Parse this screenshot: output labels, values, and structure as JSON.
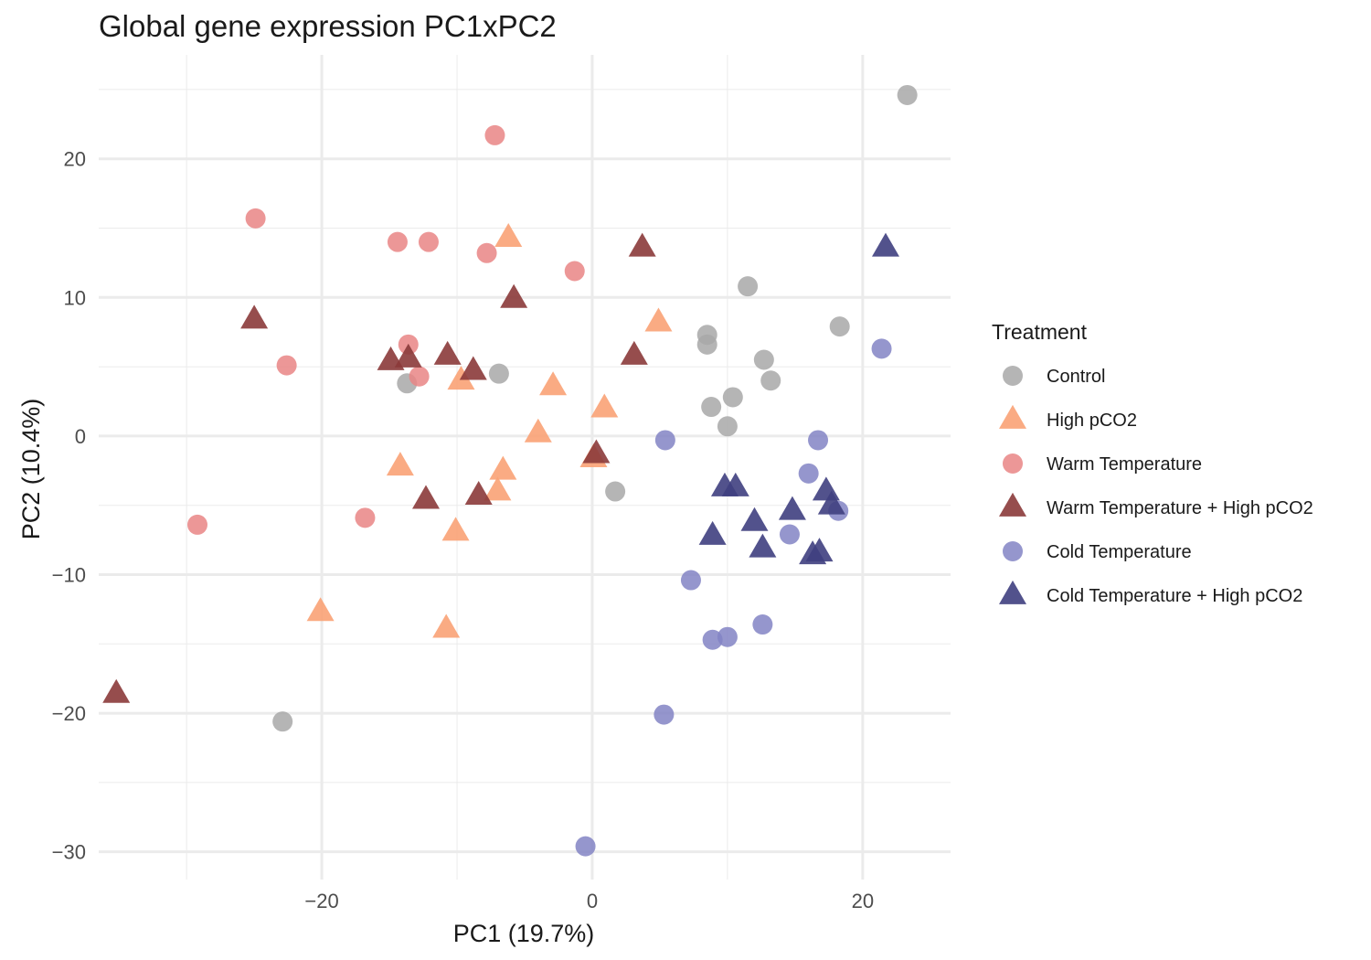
{
  "chart_data": {
    "type": "scatter",
    "title": "Global gene expression PC1xPC2",
    "xlabel": "PC1 (19.7%)",
    "ylabel": "PC2 (10.4%)",
    "xlim": [
      -36.5,
      26.5
    ],
    "ylim": [
      -32,
      27.5
    ],
    "x_ticks": [
      -20,
      0,
      20
    ],
    "x_tick_labels": [
      "−20",
      "0",
      "20"
    ],
    "y_ticks": [
      -30,
      -20,
      -10,
      0,
      10,
      20
    ],
    "y_tick_labels": [
      "−30",
      "−20",
      "−10",
      "0",
      "10",
      "20"
    ],
    "grid": true,
    "legend": {
      "title": "Treatment",
      "position": "right"
    },
    "series": [
      {
        "name": "Control",
        "shape": "circle",
        "color": "#A8A8A8",
        "points": [
          [
            23.3,
            24.6
          ],
          [
            11.5,
            10.8
          ],
          [
            18.3,
            7.9
          ],
          [
            8.5,
            7.3
          ],
          [
            8.5,
            6.6
          ],
          [
            12.7,
            5.5
          ],
          [
            13.2,
            4.0
          ],
          [
            -6.9,
            4.5
          ],
          [
            -13.7,
            3.8
          ],
          [
            10.4,
            2.8
          ],
          [
            8.8,
            2.1
          ],
          [
            10.0,
            0.7
          ],
          [
            1.7,
            -4.0
          ],
          [
            -22.9,
            -20.6
          ]
        ]
      },
      {
        "name": "High pCO2",
        "shape": "triangle",
        "color": "#F9A275",
        "points": [
          [
            -6.2,
            14.3
          ],
          [
            4.9,
            8.2
          ],
          [
            -9.7,
            4.0
          ],
          [
            -2.9,
            3.6
          ],
          [
            0.9,
            2.0
          ],
          [
            -4.0,
            0.2
          ],
          [
            0.1,
            -1.6
          ],
          [
            -14.2,
            -2.2
          ],
          [
            -6.6,
            -2.5
          ],
          [
            -7.0,
            -4.0
          ],
          [
            -10.1,
            -6.9
          ],
          [
            -20.1,
            -12.7
          ],
          [
            -10.8,
            -13.9
          ]
        ]
      },
      {
        "name": "Warm Temperature",
        "shape": "circle",
        "color": "#E98585",
        "points": [
          [
            -7.2,
            21.7
          ],
          [
            -24.9,
            15.7
          ],
          [
            -14.4,
            14.0
          ],
          [
            -12.1,
            14.0
          ],
          [
            -7.8,
            13.2
          ],
          [
            -1.3,
            11.9
          ],
          [
            -13.6,
            6.6
          ],
          [
            -22.6,
            5.1
          ],
          [
            -12.8,
            4.3
          ],
          [
            -16.8,
            -5.9
          ],
          [
            -29.2,
            -6.4
          ]
        ]
      },
      {
        "name": "Warm Temperature + High pCO2",
        "shape": "triangle",
        "color": "#8B3A3A",
        "points": [
          [
            3.7,
            13.6
          ],
          [
            -5.8,
            9.9
          ],
          [
            -25.0,
            8.4
          ],
          [
            3.1,
            5.8
          ],
          [
            -10.7,
            5.8
          ],
          [
            -14.9,
            5.4
          ],
          [
            -13.6,
            5.6
          ],
          [
            -8.8,
            4.7
          ],
          [
            0.3,
            -1.3
          ],
          [
            -12.3,
            -4.6
          ],
          [
            -8.4,
            -4.3
          ],
          [
            -35.2,
            -18.6
          ]
        ]
      },
      {
        "name": "Cold Temperature",
        "shape": "circle",
        "color": "#8284C4",
        "points": [
          [
            21.4,
            6.3
          ],
          [
            5.4,
            -0.3
          ],
          [
            16.7,
            -0.3
          ],
          [
            16.0,
            -2.7
          ],
          [
            18.2,
            -5.4
          ],
          [
            14.6,
            -7.1
          ],
          [
            7.3,
            -10.4
          ],
          [
            12.6,
            -13.6
          ],
          [
            10.0,
            -14.5
          ],
          [
            8.9,
            -14.7
          ],
          [
            5.3,
            -20.1
          ],
          [
            -0.5,
            -29.6
          ]
        ]
      },
      {
        "name": "Cold Temperature + High pCO2",
        "shape": "triangle",
        "color": "#3F3F7F",
        "points": [
          [
            21.7,
            13.6
          ],
          [
            9.8,
            -3.7
          ],
          [
            10.6,
            -3.7
          ],
          [
            17.3,
            -4.0
          ],
          [
            17.7,
            -5.0
          ],
          [
            14.8,
            -5.4
          ],
          [
            12.0,
            -6.2
          ],
          [
            8.9,
            -7.2
          ],
          [
            12.6,
            -8.1
          ],
          [
            16.8,
            -8.4
          ],
          [
            16.3,
            -8.6
          ]
        ]
      }
    ]
  }
}
